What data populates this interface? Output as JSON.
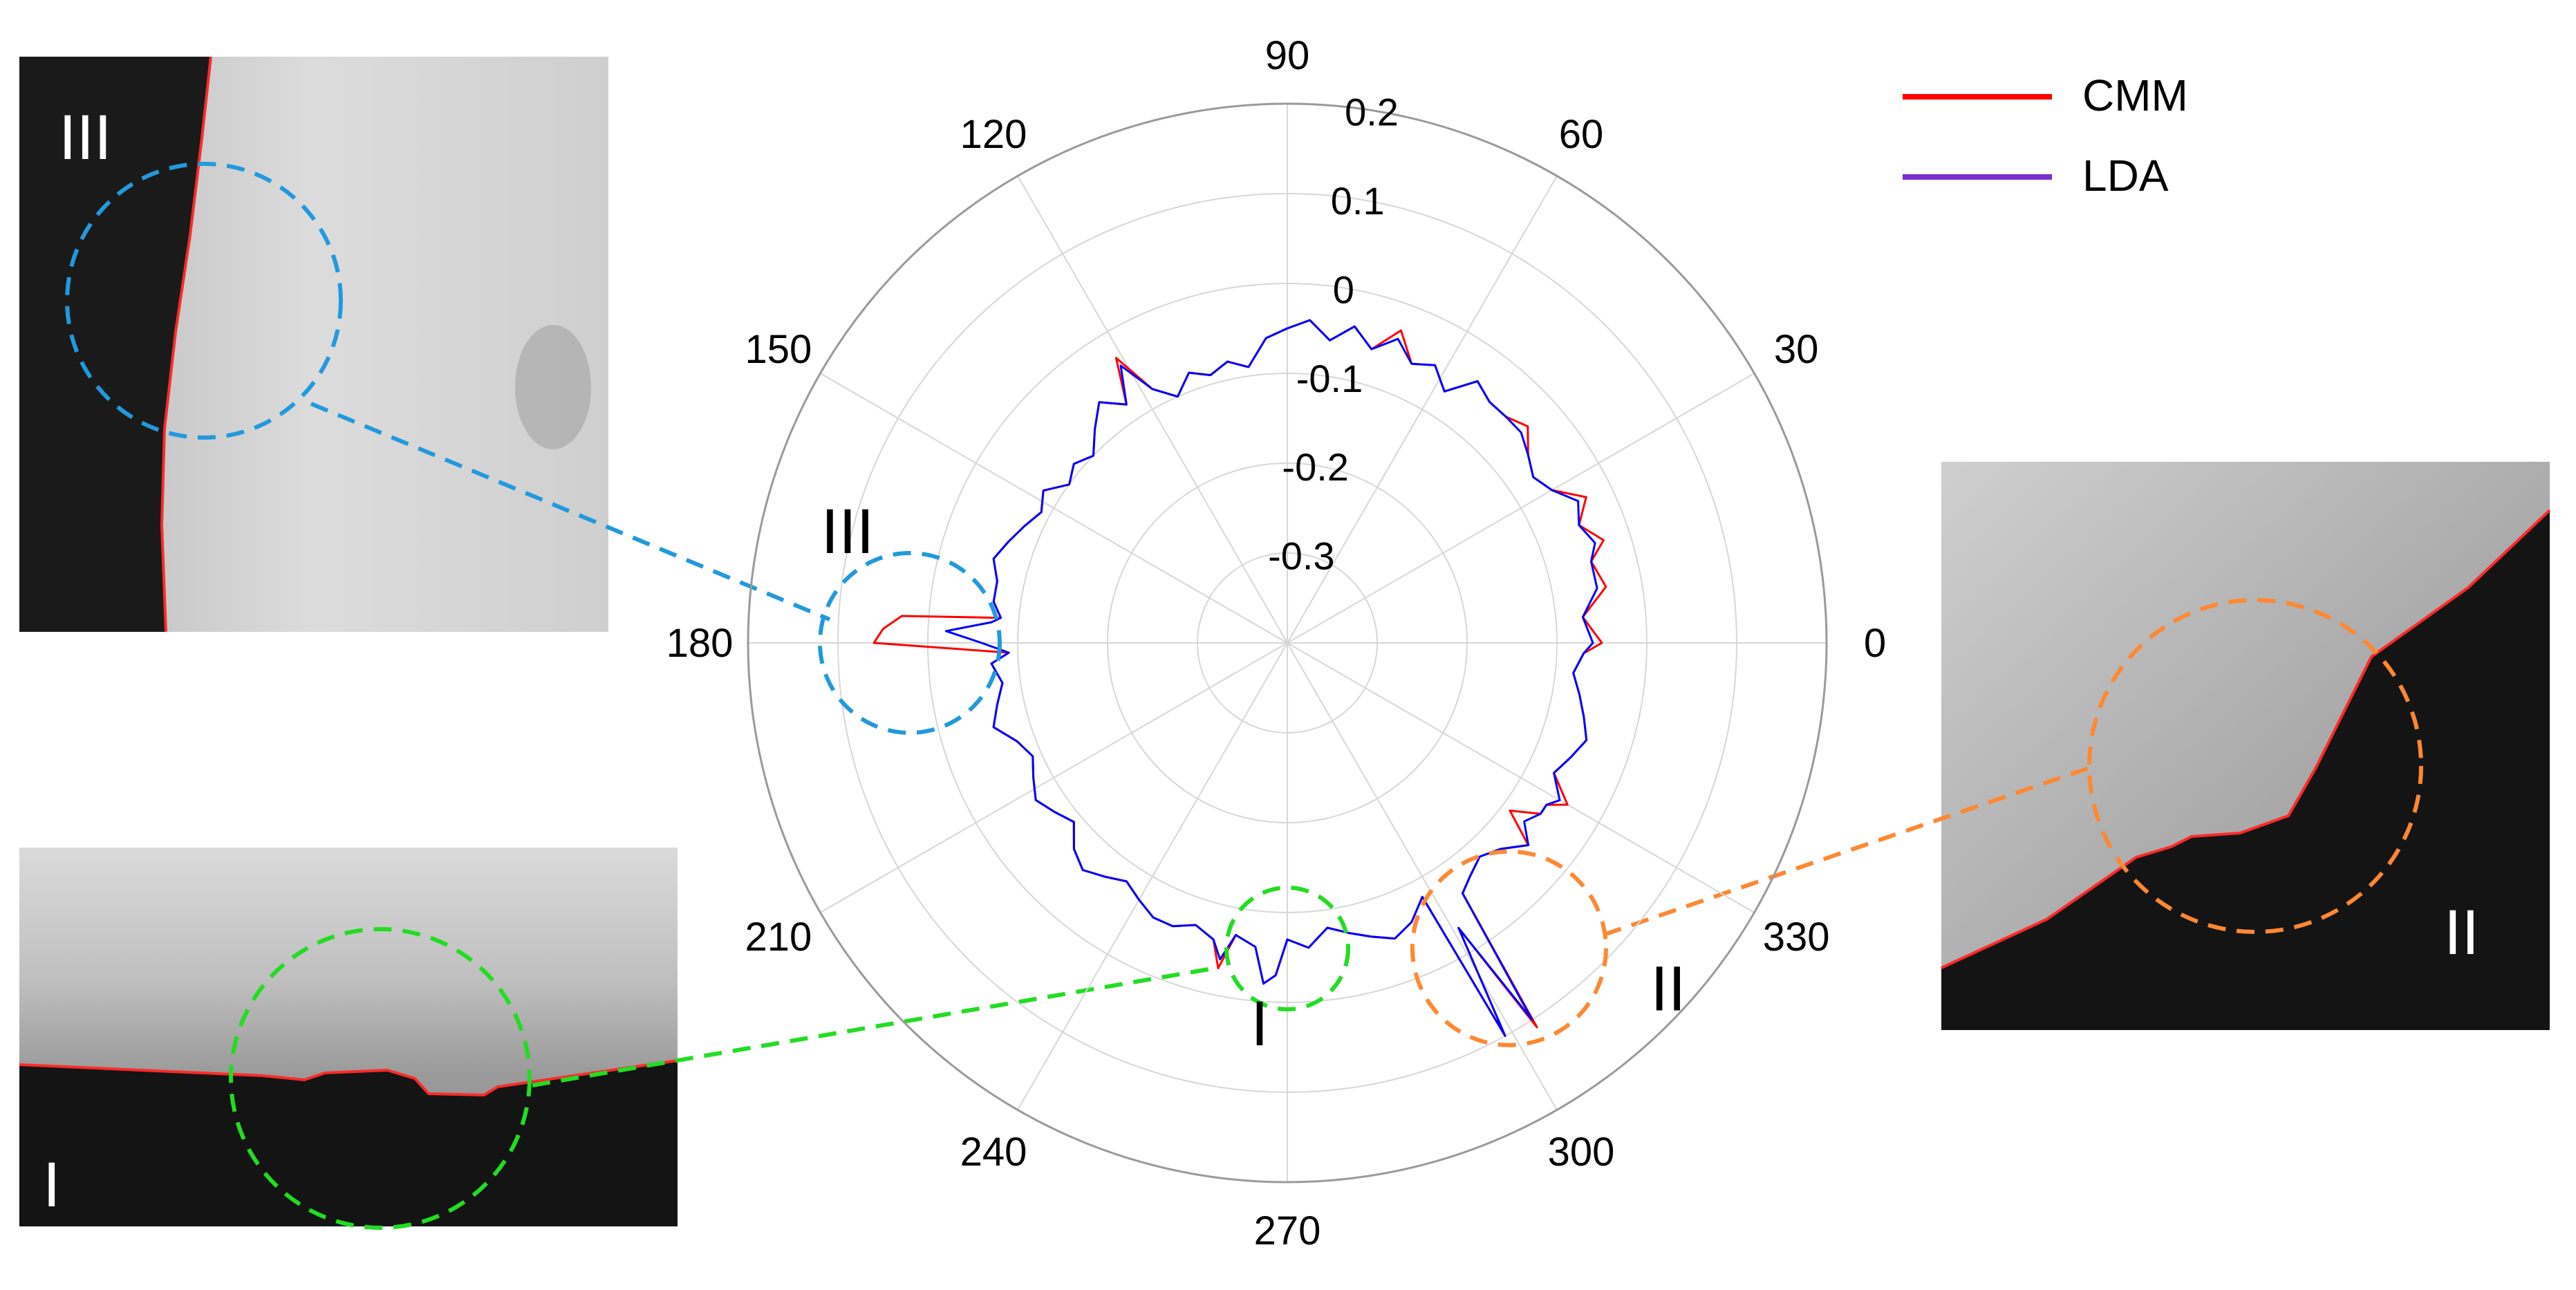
{
  "chart_data": {
    "type": "polar-line",
    "title": "",
    "theta_ticks": [
      "0",
      "30",
      "60",
      "90",
      "120",
      "150",
      "180",
      "210",
      "240",
      "270",
      "300",
      "330"
    ],
    "r_ticks": [
      "-0.3",
      "-0.2",
      "-0.1",
      "0",
      "0.1",
      "0.2"
    ],
    "r_range": [
      -0.4,
      0.2
    ],
    "grid": true,
    "legend_position": "top-right",
    "series": [
      {
        "name": "CMM",
        "color": "#ff0000",
        "points": [
          [
            0,
            -0.05
          ],
          [
            5,
            -0.07
          ],
          [
            10,
            -0.04
          ],
          [
            15,
            -0.05
          ],
          [
            18,
            -0.03
          ],
          [
            22,
            -0.05
          ],
          [
            26,
            -0.03
          ],
          [
            30,
            -0.06
          ],
          [
            34,
            -0.07
          ],
          [
            38,
            -0.06
          ],
          [
            42,
            -0.04
          ],
          [
            46,
            -0.05
          ],
          [
            50,
            -0.05
          ],
          [
            54,
            -0.04
          ],
          [
            58,
            -0.07
          ],
          [
            62,
            -0.05
          ],
          [
            66,
            -0.06
          ],
          [
            70,
            -0.03
          ],
          [
            74,
            -0.06
          ],
          [
            78,
            -0.04
          ],
          [
            82,
            -0.06
          ],
          [
            86,
            -0.04
          ],
          [
            90,
            -0.05
          ],
          [
            94,
            -0.06
          ],
          [
            98,
            -0.09
          ],
          [
            102,
            -0.08
          ],
          [
            106,
            -0.09
          ],
          [
            110,
            -0.08
          ],
          [
            114,
            -0.1
          ],
          [
            118,
            -0.08
          ],
          [
            121,
            -0.03
          ],
          [
            124,
            -0.08
          ],
          [
            128,
            -0.06
          ],
          [
            132,
            -0.08
          ],
          [
            136,
            -0.1
          ],
          [
            140,
            -0.09
          ],
          [
            144,
            -0.1
          ],
          [
            148,
            -0.08
          ],
          [
            152,
            -0.09
          ],
          [
            156,
            -0.08
          ],
          [
            160,
            -0.07
          ],
          [
            164,
            -0.06
          ],
          [
            168,
            -0.07
          ],
          [
            172,
            -0.07
          ],
          [
            175,
            -0.08
          ],
          [
            176,
            0.03
          ],
          [
            178,
            0.05
          ],
          [
            180,
            0.06
          ],
          [
            182,
            -0.09
          ],
          [
            184,
            -0.07
          ],
          [
            188,
            -0.08
          ],
          [
            192,
            -0.07
          ],
          [
            196,
            -0.06
          ],
          [
            200,
            -0.08
          ],
          [
            204,
            -0.09
          ],
          [
            208,
            -0.08
          ],
          [
            212,
            -0.07
          ],
          [
            216,
            -0.08
          ],
          [
            220,
            -0.09
          ],
          [
            224,
            -0.07
          ],
          [
            228,
            -0.06
          ],
          [
            232,
            -0.07
          ],
          [
            236,
            -0.08
          ],
          [
            240,
            -0.07
          ],
          [
            244,
            -0.06
          ],
          [
            248,
            -0.06
          ],
          [
            252,
            -0.07
          ],
          [
            256,
            -0.06
          ],
          [
            258,
            -0.03
          ],
          [
            260,
            -0.07
          ],
          [
            264,
            -0.06
          ],
          [
            266,
            -0.02
          ],
          [
            268,
            -0.03
          ],
          [
            270,
            -0.07
          ],
          [
            274,
            -0.06
          ],
          [
            278,
            -0.08
          ],
          [
            282,
            -0.07
          ],
          [
            286,
            -0.06
          ],
          [
            290,
            -0.05
          ],
          [
            294,
            -0.06
          ],
          [
            298,
            -0.08
          ],
          [
            299,
            0.1
          ],
          [
            301,
            -0.03
          ],
          [
            303,
            0.11
          ],
          [
            305,
            -0.06
          ],
          [
            308,
            -0.07
          ],
          [
            312,
            -0.08
          ],
          [
            316,
            -0.07
          ],
          [
            320,
            -0.05
          ],
          [
            323,
            -0.09
          ],
          [
            326,
            -0.06
          ],
          [
            328,
            -0.06
          ],
          [
            330,
            -0.04
          ],
          [
            334,
            -0.07
          ],
          [
            338,
            -0.06
          ],
          [
            342,
            -0.05
          ],
          [
            346,
            -0.06
          ],
          [
            350,
            -0.07
          ],
          [
            354,
            -0.08
          ],
          [
            358,
            -0.07
          ],
          [
            360,
            -0.05
          ]
        ]
      },
      {
        "name": "LDA",
        "color": "#0000ff",
        "points": [
          [
            0,
            -0.06
          ],
          [
            5,
            -0.07
          ],
          [
            10,
            -0.05
          ],
          [
            15,
            -0.05
          ],
          [
            18,
            -0.04
          ],
          [
            22,
            -0.05
          ],
          [
            26,
            -0.04
          ],
          [
            30,
            -0.06
          ],
          [
            34,
            -0.07
          ],
          [
            38,
            -0.06
          ],
          [
            42,
            -0.05
          ],
          [
            46,
            -0.05
          ],
          [
            50,
            -0.05
          ],
          [
            54,
            -0.04
          ],
          [
            58,
            -0.07
          ],
          [
            62,
            -0.05
          ],
          [
            66,
            -0.06
          ],
          [
            70,
            -0.04
          ],
          [
            74,
            -0.06
          ],
          [
            78,
            -0.04
          ],
          [
            82,
            -0.06
          ],
          [
            86,
            -0.04
          ],
          [
            90,
            -0.05
          ],
          [
            94,
            -0.06
          ],
          [
            98,
            -0.09
          ],
          [
            102,
            -0.08
          ],
          [
            106,
            -0.09
          ],
          [
            110,
            -0.08
          ],
          [
            114,
            -0.1
          ],
          [
            118,
            -0.08
          ],
          [
            121,
            -0.04
          ],
          [
            124,
            -0.08
          ],
          [
            128,
            -0.06
          ],
          [
            132,
            -0.08
          ],
          [
            136,
            -0.1
          ],
          [
            140,
            -0.09
          ],
          [
            144,
            -0.1
          ],
          [
            148,
            -0.08
          ],
          [
            152,
            -0.09
          ],
          [
            156,
            -0.08
          ],
          [
            160,
            -0.07
          ],
          [
            164,
            -0.06
          ],
          [
            168,
            -0.07
          ],
          [
            172,
            -0.07
          ],
          [
            175,
            -0.08
          ],
          [
            176,
            -0.07
          ],
          [
            178,
            -0.02
          ],
          [
            180,
            -0.06
          ],
          [
            182,
            -0.09
          ],
          [
            184,
            -0.07
          ],
          [
            188,
            -0.08
          ],
          [
            192,
            -0.07
          ],
          [
            196,
            -0.06
          ],
          [
            200,
            -0.08
          ],
          [
            204,
            -0.09
          ],
          [
            208,
            -0.08
          ],
          [
            212,
            -0.07
          ],
          [
            216,
            -0.08
          ],
          [
            220,
            -0.09
          ],
          [
            224,
            -0.07
          ],
          [
            228,
            -0.06
          ],
          [
            232,
            -0.07
          ],
          [
            236,
            -0.08
          ],
          [
            240,
            -0.07
          ],
          [
            244,
            -0.06
          ],
          [
            248,
            -0.06
          ],
          [
            252,
            -0.07
          ],
          [
            256,
            -0.06
          ],
          [
            258,
            -0.04
          ],
          [
            260,
            -0.07
          ],
          [
            264,
            -0.06
          ],
          [
            266,
            -0.02
          ],
          [
            268,
            -0.03
          ],
          [
            270,
            -0.07
          ],
          [
            274,
            -0.06
          ],
          [
            278,
            -0.08
          ],
          [
            282,
            -0.07
          ],
          [
            286,
            -0.06
          ],
          [
            290,
            -0.05
          ],
          [
            294,
            -0.06
          ],
          [
            298,
            -0.08
          ],
          [
            299,
            0.1
          ],
          [
            301,
            -0.03
          ],
          [
            303,
            0.1
          ],
          [
            305,
            -0.06
          ],
          [
            308,
            -0.07
          ],
          [
            312,
            -0.08
          ],
          [
            316,
            -0.07
          ],
          [
            320,
            -0.05
          ],
          [
            323,
            -0.07
          ],
          [
            326,
            -0.06
          ],
          [
            328,
            -0.06
          ],
          [
            330,
            -0.05
          ],
          [
            334,
            -0.07
          ],
          [
            338,
            -0.06
          ],
          [
            342,
            -0.05
          ],
          [
            346,
            -0.06
          ],
          [
            350,
            -0.07
          ],
          [
            354,
            -0.08
          ],
          [
            358,
            -0.07
          ],
          [
            360,
            -0.06
          ]
        ]
      }
    ],
    "annotations": [
      {
        "label": "I",
        "color": "#22dd22",
        "theta": 270,
        "r": -0.06
      },
      {
        "label": "II",
        "color": "#ff8833",
        "theta": 306,
        "r": 0.02
      },
      {
        "label": "III",
        "color": "#2299dd",
        "theta": 180,
        "r": 0.02
      }
    ]
  },
  "insets": [
    {
      "id": "III",
      "label": "III",
      "color": "#2299dd"
    },
    {
      "id": "I",
      "label": "I",
      "color": "#22dd22"
    },
    {
      "id": "II",
      "label": "II",
      "color": "#ff8833"
    }
  ]
}
